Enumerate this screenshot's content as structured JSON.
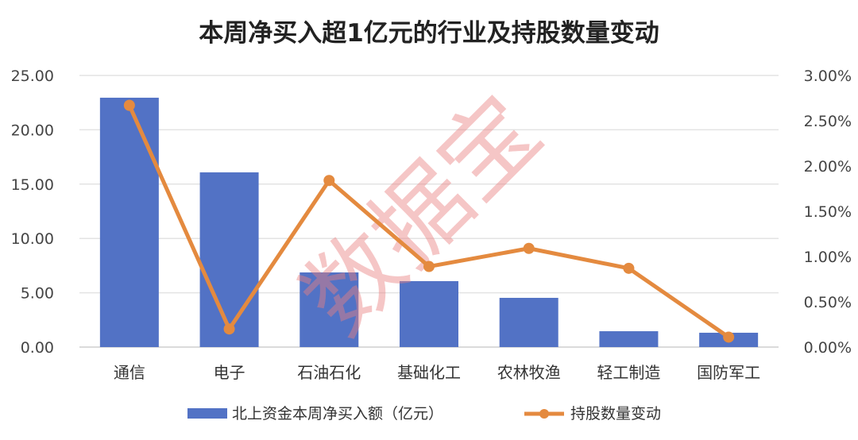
{
  "chart_data": {
    "type": "bar+line",
    "title": "本周净买入超1亿元的行业及持股数量变动",
    "categories": [
      "通信",
      "电子",
      "石油石化",
      "基础化工",
      "农林牧渔",
      "轻工制造",
      "国防军工"
    ],
    "series": [
      {
        "name": "北上资金本周净买入额（亿元）",
        "type": "bar",
        "axis": "left",
        "color": "#5272c5",
        "values": [
          22.95,
          16.08,
          6.87,
          6.07,
          4.53,
          1.46,
          1.32
        ]
      },
      {
        "name": "持股数量变动",
        "type": "line",
        "axis": "right",
        "color": "#e48a3f",
        "values": [
          2.67,
          0.2,
          1.84,
          0.89,
          1.09,
          0.87,
          0.11
        ]
      }
    ],
    "y_left": {
      "range": [
        0,
        25
      ],
      "ticks": [
        "0.00",
        "5.00",
        "10.00",
        "15.00",
        "20.00",
        "25.00"
      ]
    },
    "y_right": {
      "range": [
        0,
        3
      ],
      "unit": "%",
      "ticks": [
        "0.00%",
        "0.50%",
        "1.00%",
        "1.50%",
        "2.00%",
        "2.50%",
        "3.00%"
      ]
    },
    "grid": true,
    "legend": "bottom",
    "watermark": "数据宝"
  }
}
